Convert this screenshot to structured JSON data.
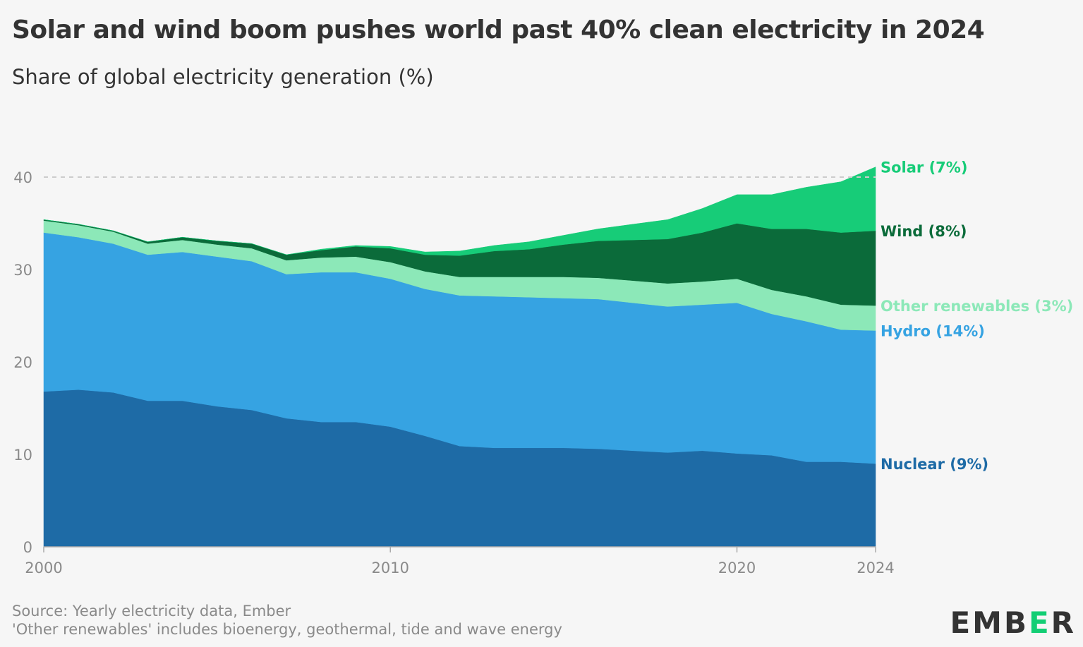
{
  "title": "Solar and wind boom pushes world past 40% clean electricity in 2024",
  "subtitle": "Share of global electricity generation (%)",
  "footer": {
    "source": "Source: Yearly electricity data, Ember",
    "note": "'Other renewables' includes bioenergy, geothermal, tide and wave energy"
  },
  "logo": {
    "prefix": "EMB",
    "accent": "E",
    "suffix": "R"
  },
  "colors": {
    "nuclear": "#1e6ba6",
    "hydro": "#36a3e2",
    "other": "#8ce8b8",
    "wind": "#0b6b3a",
    "solar": "#17cc78",
    "nuclear_label": "#1e6ba6",
    "hydro_label": "#36a3e2",
    "other_label": "#8ce8b8",
    "wind_label": "#0b6b3a",
    "solar_label": "#17cc78"
  },
  "chart_data": {
    "type": "area",
    "stacked": true,
    "title": "Solar and wind boom pushes world past 40% clean electricity in 2024",
    "subtitle": "Share of global electricity generation (%)",
    "x": [
      2000,
      2001,
      2002,
      2003,
      2004,
      2005,
      2006,
      2007,
      2008,
      2009,
      2010,
      2011,
      2012,
      2013,
      2014,
      2015,
      2016,
      2017,
      2018,
      2019,
      2020,
      2021,
      2022,
      2023,
      2024
    ],
    "x_ticks": [
      "2000",
      "2010",
      "2020",
      "2024"
    ],
    "x_tick_values": [
      2000,
      2010,
      2020,
      2024
    ],
    "y_ticks": [
      "0",
      "10",
      "20",
      "30",
      "40"
    ],
    "y_tick_values": [
      0,
      10,
      20,
      30,
      40
    ],
    "ylim": [
      0,
      45
    ],
    "reference_line": {
      "y": 40,
      "style": "dashed"
    },
    "series": [
      {
        "key": "nuclear",
        "name": "Nuclear (9%)",
        "values": [
          16.8,
          17.0,
          16.7,
          15.8,
          15.8,
          15.2,
          14.8,
          13.9,
          13.5,
          13.5,
          13.0,
          12.0,
          10.9,
          10.7,
          10.7,
          10.7,
          10.6,
          10.4,
          10.2,
          10.4,
          10.1,
          9.9,
          9.2,
          9.2,
          9.0
        ]
      },
      {
        "key": "hydro",
        "name": "Hydro (14%)",
        "values": [
          17.2,
          16.5,
          16.1,
          15.8,
          16.1,
          16.2,
          16.1,
          15.6,
          16.2,
          16.2,
          16.0,
          15.9,
          16.3,
          16.4,
          16.3,
          16.2,
          16.2,
          16.0,
          15.8,
          15.8,
          16.3,
          15.3,
          15.2,
          14.3,
          14.4
        ]
      },
      {
        "key": "other",
        "name": "Other renewables (3%)",
        "values": [
          1.3,
          1.3,
          1.3,
          1.2,
          1.3,
          1.3,
          1.4,
          1.5,
          1.6,
          1.7,
          1.8,
          1.9,
          2.0,
          2.1,
          2.2,
          2.3,
          2.3,
          2.4,
          2.5,
          2.5,
          2.6,
          2.6,
          2.7,
          2.7,
          2.7
        ]
      },
      {
        "key": "wind",
        "name": "Wind (8%)",
        "values": [
          0.1,
          0.1,
          0.1,
          0.2,
          0.3,
          0.4,
          0.5,
          0.6,
          0.8,
          1.1,
          1.5,
          1.8,
          2.3,
          2.8,
          3.0,
          3.5,
          4.0,
          4.4,
          4.8,
          5.3,
          6.0,
          6.6,
          7.3,
          7.8,
          8.1
        ]
      },
      {
        "key": "solar",
        "name": "Solar (7%)",
        "values": [
          0.0,
          0.0,
          0.0,
          0.0,
          0.0,
          0.0,
          0.0,
          0.0,
          0.1,
          0.1,
          0.2,
          0.3,
          0.5,
          0.6,
          0.8,
          1.0,
          1.3,
          1.7,
          2.1,
          2.6,
          3.1,
          3.7,
          4.5,
          5.5,
          6.9
        ]
      }
    ]
  }
}
